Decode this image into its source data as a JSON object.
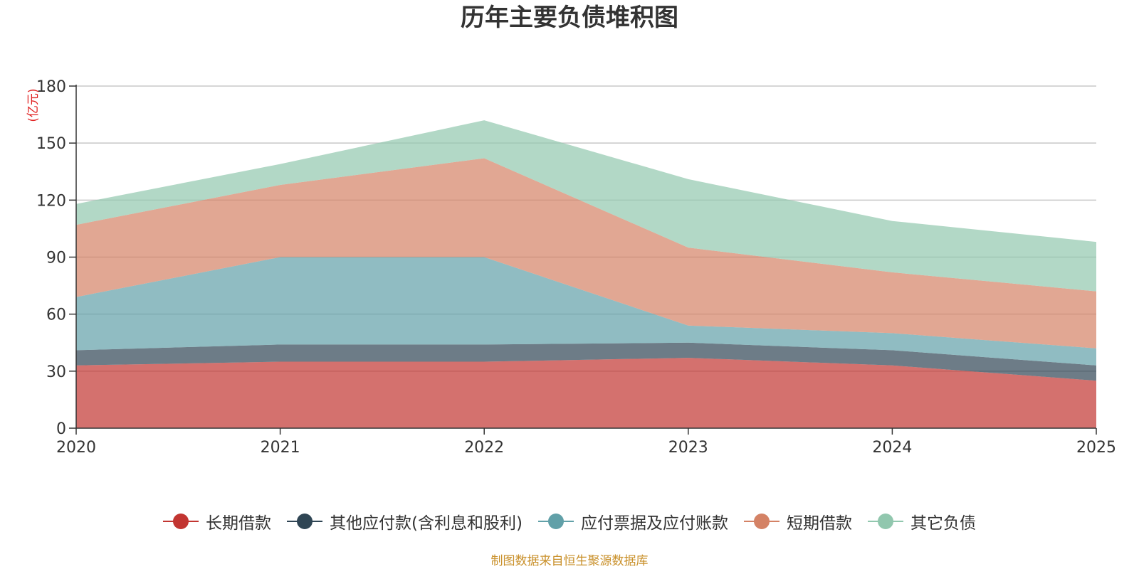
{
  "chart_data": {
    "type": "area",
    "stacked": true,
    "title": "历年主要负债堆积图",
    "unit_label": "(亿元)",
    "x": [
      "2020",
      "2021",
      "2022",
      "2023",
      "2024",
      "2025"
    ],
    "ylim": [
      0,
      180
    ],
    "yticks": [
      "0",
      "30",
      "60",
      "90",
      "120",
      "150",
      "180"
    ],
    "grid": true,
    "legend_position": "bottom",
    "series": [
      {
        "name": "长期借款",
        "color": "#c23531",
        "values": [
          33,
          35,
          35,
          37,
          33,
          25
        ]
      },
      {
        "name": "其他应付款(含利息和股利)",
        "color": "#2f4554",
        "values": [
          8,
          9,
          9,
          8,
          8,
          8
        ]
      },
      {
        "name": "应付票据及应付账款",
        "color": "#61a0a8",
        "values": [
          28,
          46,
          46,
          9,
          9,
          9
        ]
      },
      {
        "name": "短期借款",
        "color": "#d48265",
        "values": [
          38,
          38,
          52,
          41,
          32,
          30
        ]
      },
      {
        "name": "其它负债",
        "color": "#91c7ae",
        "values": [
          11,
          11,
          20,
          36,
          27,
          26
        ]
      }
    ],
    "source_note": "制图数据来自恒生聚源数据库"
  }
}
